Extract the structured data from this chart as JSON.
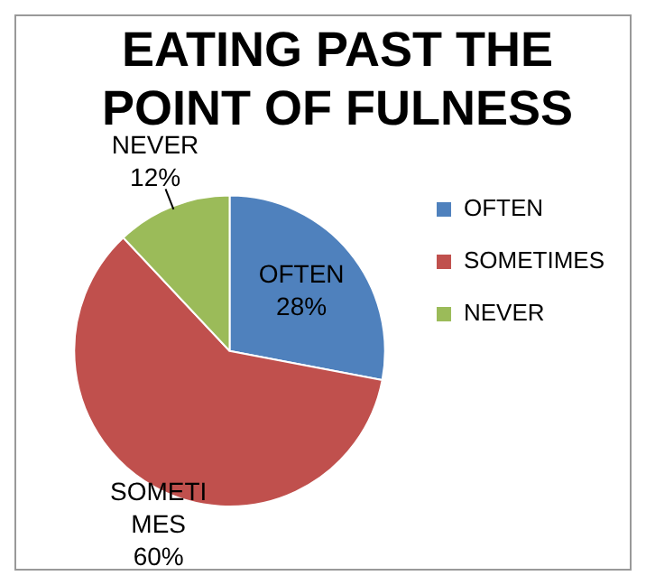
{
  "chart_data": {
    "type": "pie",
    "title": "EATING PAST THE POINT OF FULNESS",
    "categories": [
      "OFTEN",
      "SOMETIMES",
      "NEVER"
    ],
    "values": [
      28,
      60,
      12
    ],
    "value_labels": [
      "28%",
      "60%",
      "12%"
    ],
    "colors": [
      "#4f81bd",
      "#c0504d",
      "#9bbb59"
    ],
    "legend": "right"
  }
}
